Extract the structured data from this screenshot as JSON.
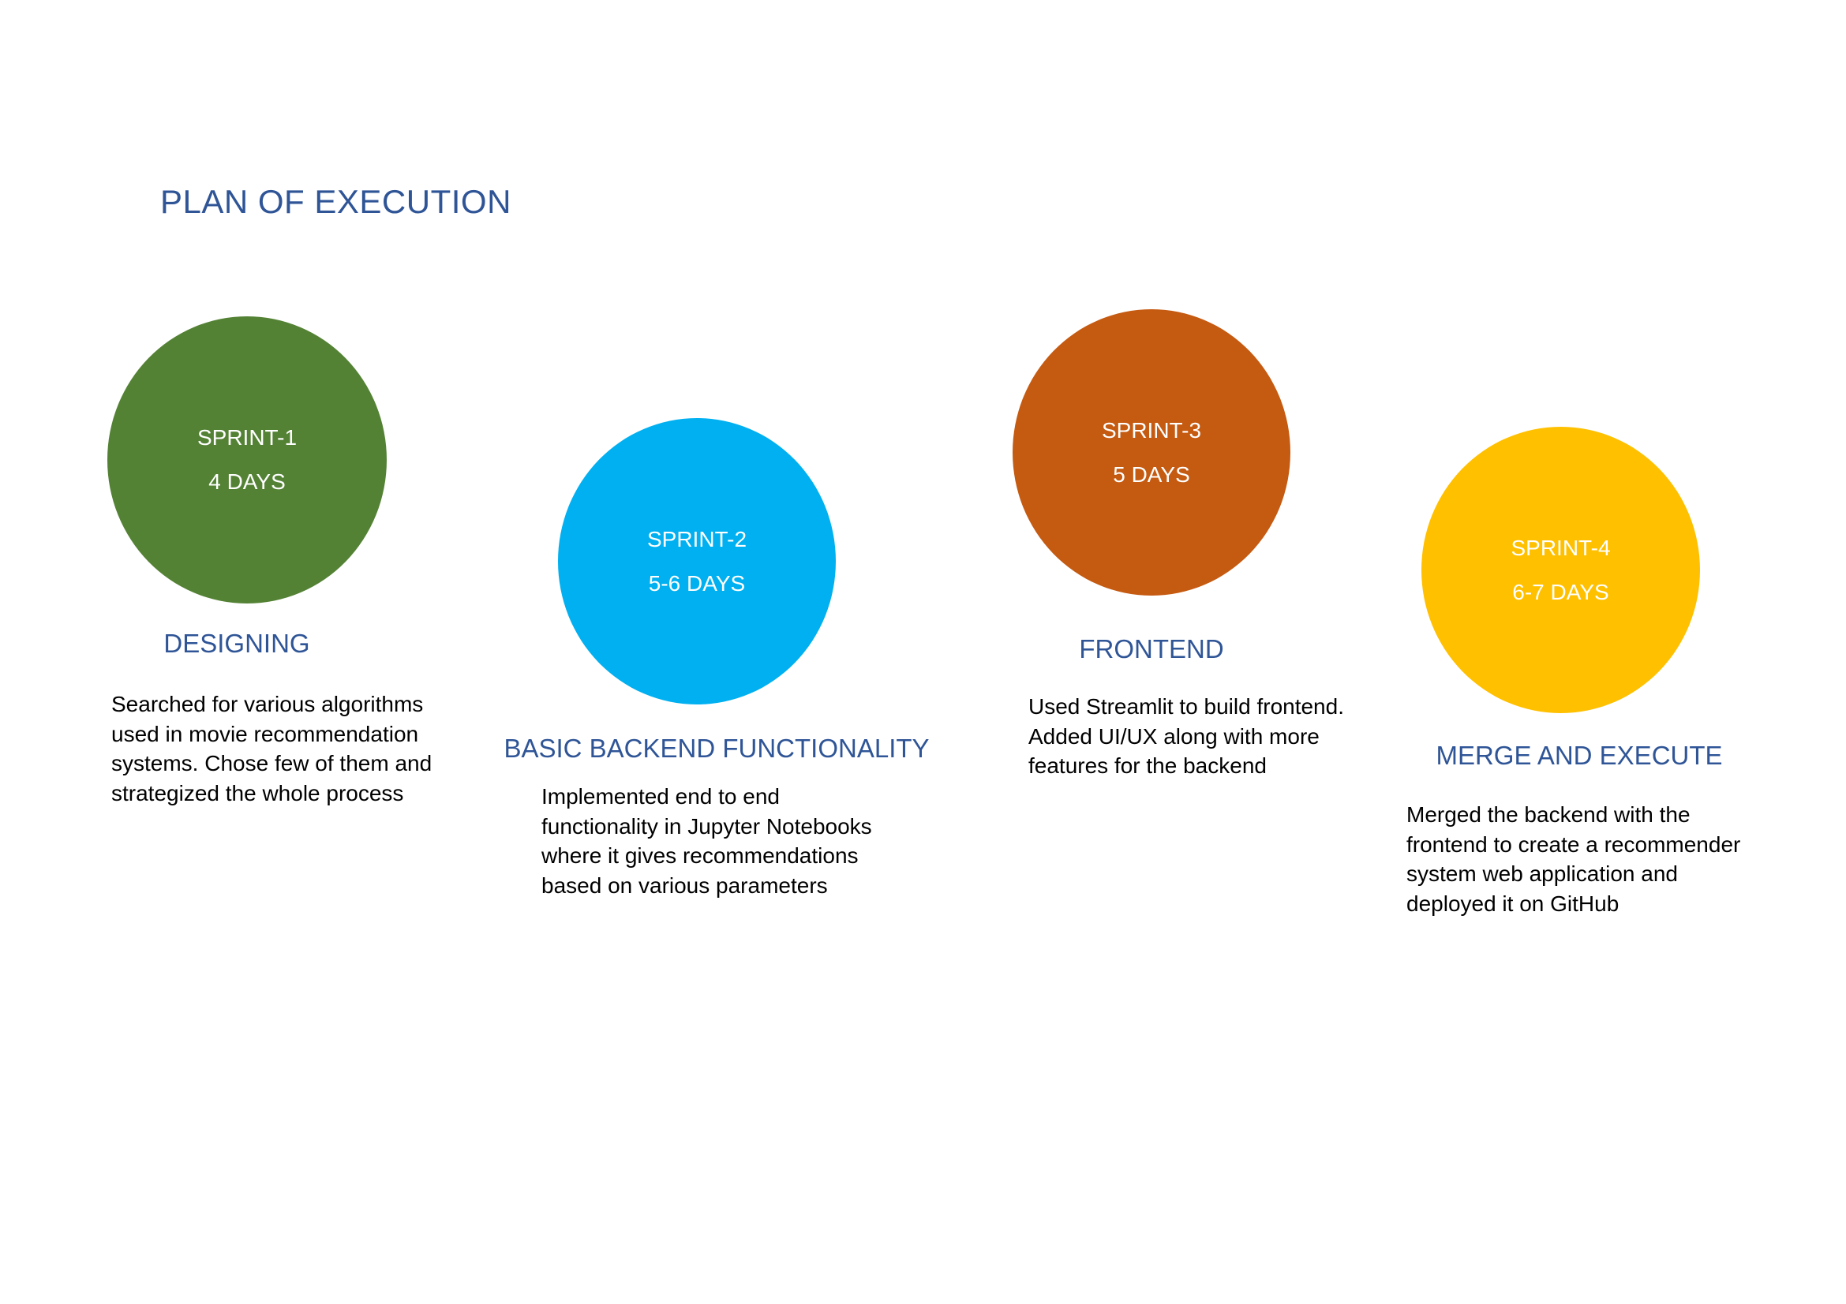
{
  "title": "PLAN OF EXECUTION",
  "colors": {
    "title": "#2f5597",
    "heading": "#2f5597",
    "sprint1": "#548235",
    "sprint2": "#00b0f0",
    "sprint3": "#c55a11",
    "sprint4": "#ffc000"
  },
  "sprints": [
    {
      "name": "SPRINT-1",
      "duration": "4 DAYS",
      "heading": "DESIGNING",
      "description_lines": [
        "Searched for various algorithms",
        "used in movie recommendation",
        "systems. Chose few of them and",
        "strategized the whole process"
      ]
    },
    {
      "name": "SPRINT-2",
      "duration": "5-6 DAYS",
      "heading": "BASIC BACKEND FUNCTIONALITY",
      "description_lines": [
        "Implemented end to end",
        "functionality in Jupyter Notebooks",
        "where it gives recommendations",
        "based on various parameters"
      ]
    },
    {
      "name": "SPRINT-3",
      "duration": "5 DAYS",
      "heading": "FRONTEND",
      "description_lines": [
        "Used Streamlit to build frontend.",
        "Added UI/UX along with more",
        "features for the backend"
      ]
    },
    {
      "name": "SPRINT-4",
      "duration": "6-7 DAYS",
      "heading": "MERGE AND EXECUTE",
      "description_lines": [
        "Merged the backend with the",
        "frontend to create a recommender",
        "system web application and",
        "deployed it on GitHub"
      ]
    }
  ]
}
